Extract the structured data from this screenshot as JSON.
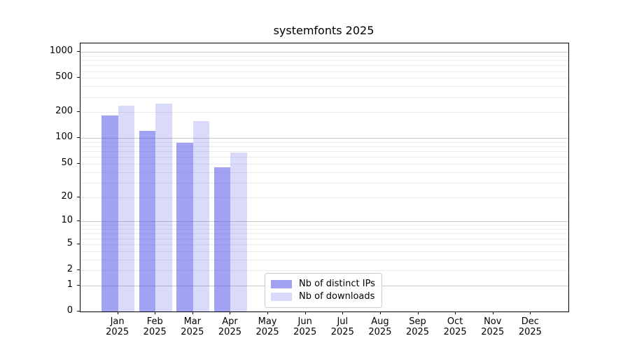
{
  "figure": {
    "title": "systemfonts 2025"
  },
  "chart_data": {
    "type": "bar",
    "title": "systemfonts 2025",
    "x_categories": [
      "Jan 2025",
      "Feb 2025",
      "Mar 2025",
      "Apr 2025",
      "May 2025",
      "Jun 2025",
      "Jul 2025",
      "Aug 2025",
      "Sep 2025",
      "Oct 2025",
      "Nov 2025",
      "Dec 2025"
    ],
    "series": [
      {
        "name": "Nb of distinct IPs",
        "color": "rgba(70,70,230,0.5)",
        "values": [
          182,
          122,
          88,
          45,
          0,
          0,
          0,
          0,
          0,
          0,
          0,
          0
        ]
      },
      {
        "name": "Nb of downloads",
        "color": "rgba(70,70,230,0.2)",
        "values": [
          240,
          250,
          157,
          68,
          0,
          0,
          0,
          0,
          0,
          0,
          0,
          0
        ]
      }
    ],
    "y_scale": "log1p",
    "ylim": [
      0,
      1250
    ],
    "y_ticks_labeled": [
      0,
      1,
      2,
      5,
      10,
      20,
      50,
      100,
      200,
      500,
      1000
    ],
    "y_major_gridlines": [
      1,
      10,
      100,
      1000
    ],
    "y_minor_gridlines": [
      2,
      3,
      4,
      6,
      7,
      8,
      9,
      20,
      30,
      40,
      60,
      70,
      80,
      90,
      200,
      300,
      400,
      600,
      700,
      800,
      900
    ],
    "grid": "on",
    "legend_position": "lower-center",
    "xlabel": "",
    "ylabel": ""
  },
  "colors": {
    "axis": "#000000",
    "major_grid": "#c9c9c9",
    "minor_grid": "#ececec",
    "legend_border": "#cccccc",
    "bar_distinct_ips": "rgba(70,70,230,0.5)",
    "bar_downloads": "rgba(70,70,230,0.2)"
  }
}
